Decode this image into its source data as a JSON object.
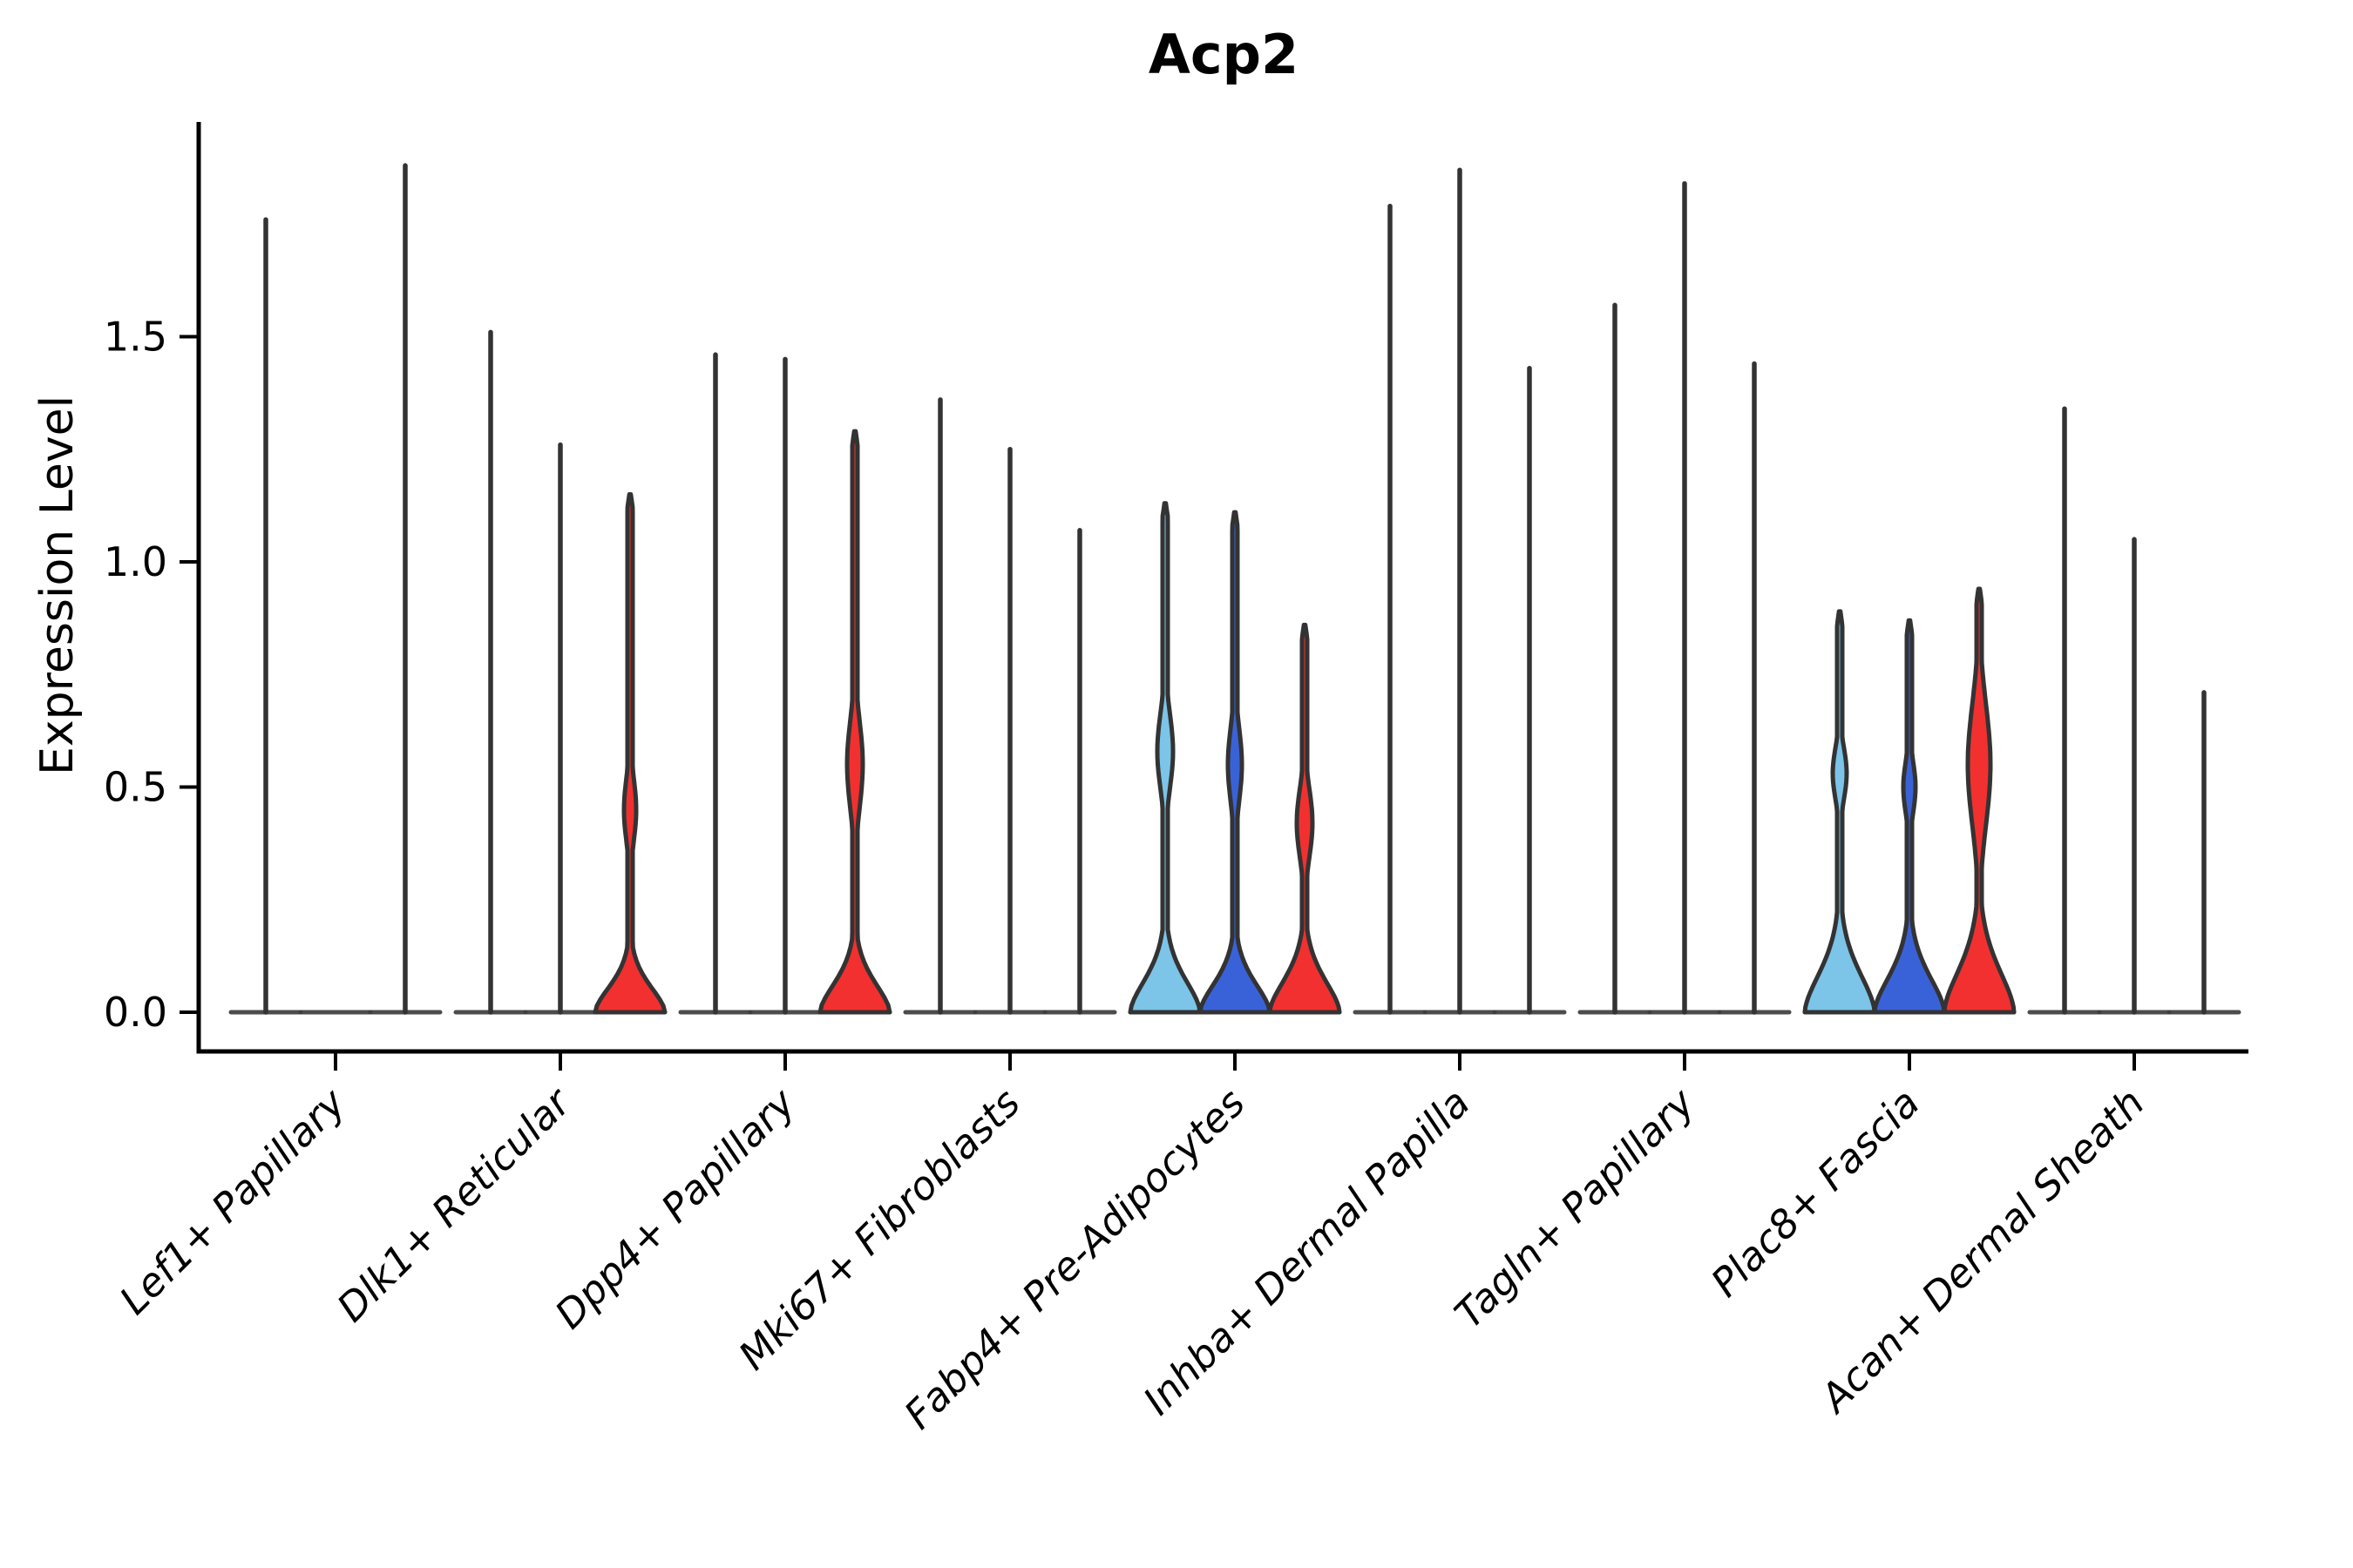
{
  "figure": {
    "title": "Acp2",
    "ylabel": "Expression Level"
  },
  "chart_data": {
    "type": "violin",
    "title": "Acp2",
    "subtitle": "",
    "xlabel": "",
    "ylabel": "Expression Level",
    "ylim": [
      -0.09,
      1.98
    ],
    "yticks": [
      0,
      0.5,
      1,
      1.5
    ],
    "ytick_labels": [
      "0.0",
      "0.5",
      "1.0",
      "1.5"
    ],
    "grid": false,
    "legend": "none",
    "categories": [
      "Lef1+ Papillary",
      "Dlk1+ Reticular",
      "Dpp4+ Papillary",
      "Mki67+ Fibroblasts",
      "Fabp4+ Pre-Adipocytes",
      "Inhba+ Dermal Papilla",
      "Tagln+ Papillary",
      "Plac8+ Fascia",
      "Acan+ Dermal Sheath"
    ],
    "series": [
      {
        "name": "split-1-light-blue",
        "color": "#7CC4E8",
        "max_expression": [
          1.76,
          1.51,
          1.46,
          1.36,
          1.13,
          1.79,
          1.57,
          0.89,
          1.34
        ]
      },
      {
        "name": "split-2-dark-blue",
        "color": "#3A62D8",
        "max_expression": [
          0.0,
          1.26,
          1.45,
          1.25,
          1.11,
          1.87,
          1.84,
          0.87,
          1.05
        ]
      },
      {
        "name": "split-3-red",
        "color": "#F23030",
        "max_expression": [
          1.88,
          1.15,
          1.29,
          1.07,
          0.86,
          1.43,
          1.44,
          0.94,
          0.71
        ]
      }
    ],
    "filled_violins": [
      {
        "category_index": 1,
        "series_index": 2,
        "flare_top": 0.16,
        "bulge_center": 0.45,
        "bulge_span": 0.22,
        "bulge_halfwidth": 7
      },
      {
        "category_index": 2,
        "series_index": 2,
        "flare_top": 0.18,
        "bulge_center": 0.55,
        "bulge_span": 0.3,
        "bulge_halfwidth": 9
      },
      {
        "category_index": 4,
        "series_index": 0,
        "flare_top": 0.2,
        "bulge_center": 0.58,
        "bulge_span": 0.26,
        "bulge_halfwidth": 9
      },
      {
        "category_index": 4,
        "series_index": 1,
        "flare_top": 0.18,
        "bulge_center": 0.55,
        "bulge_span": 0.26,
        "bulge_halfwidth": 8
      },
      {
        "category_index": 4,
        "series_index": 2,
        "flare_top": 0.2,
        "bulge_center": 0.42,
        "bulge_span": 0.24,
        "bulge_halfwidth": 9
      },
      {
        "category_index": 7,
        "series_index": 0,
        "flare_top": 0.24,
        "bulge_center": 0.53,
        "bulge_span": 0.18,
        "bulge_halfwidth": 8
      },
      {
        "category_index": 7,
        "series_index": 1,
        "flare_top": 0.22,
        "bulge_center": 0.5,
        "bulge_span": 0.18,
        "bulge_halfwidth": 7
      },
      {
        "category_index": 7,
        "series_index": 2,
        "flare_top": 0.26,
        "bulge_center": 0.55,
        "bulge_span": 0.42,
        "bulge_halfwidth": 13
      }
    ],
    "axis_color": "#000000",
    "violin_stroke": "#333333",
    "baseline_color": "#3d3d3d"
  }
}
